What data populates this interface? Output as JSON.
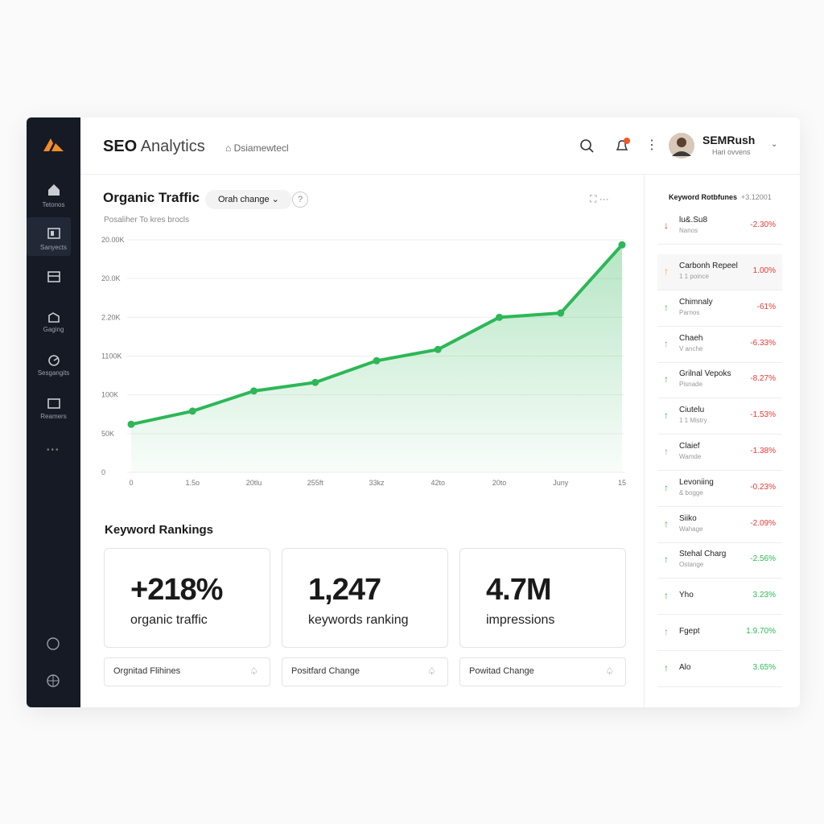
{
  "header": {
    "title_bold": "SEO",
    "title": "Analytics",
    "breadcrumb": "Dsiamewtecl",
    "user_name": "SEMRush",
    "user_role": "Hari ovvens"
  },
  "sidebar": [
    "Tetonos",
    "Sanyects",
    "Gaging",
    "Sesgangits",
    "Reamers"
  ],
  "chart_data": {
    "type": "line",
    "title": "Organic Traffic",
    "dropdown": "Orah change",
    "subtitle": "Posaliher To kres brocls",
    "categories": [
      "0",
      "1.5o",
      "20tlu",
      "255ft",
      "33kz",
      "42to",
      "20to",
      "Juny",
      "15"
    ],
    "values": [
      1.24,
      1.58,
      2.1,
      2.32,
      2.88,
      3.17,
      4.0,
      4.11,
      5.87
    ],
    "color": "#2db757",
    "ylim": [
      0,
      6
    ],
    "yticks": [
      {
        "value": 0,
        "label": "0"
      },
      {
        "value": 1,
        "label": "50K"
      },
      {
        "value": 2,
        "label": "100K"
      },
      {
        "value": 3,
        "label": "1100K"
      },
      {
        "value": 4,
        "label": "2.20K"
      },
      {
        "value": 5,
        "label": "20.0K"
      },
      {
        "value": 6,
        "label": "20.00K"
      }
    ],
    "grid": true
  },
  "rankings": {
    "title": "Keyword Rankings",
    "stats": [
      {
        "value": "+218%",
        "label": "organic traffic"
      },
      {
        "value": "1,247",
        "label": "keywords ranking"
      },
      {
        "value": "4.7M",
        "label": "impressions"
      }
    ],
    "filters": [
      "Orgnitad Flihines",
      "Positfard Change",
      "Powitad Change"
    ]
  },
  "keyword_panel": {
    "title": "Keyword Rotbfunes",
    "total": "+3.12001",
    "items": [
      {
        "name": "lu&.Su8",
        "detail": "Nanos",
        "change": "-2.30%",
        "trend": "down",
        "arrow_color": "#e53935",
        "change_color": "#e53935"
      },
      {
        "name": "Carbonh Repeel",
        "detail": "1 1 poince",
        "change": "1.00%",
        "trend": "up",
        "arrow_color": "#f5a623",
        "change_color": "#e53935"
      },
      {
        "name": "Chimnaly",
        "detail": "Parnos",
        "change": "-61%",
        "trend": "up",
        "arrow_color": "#2db757",
        "change_color": "#e53935"
      },
      {
        "name": "Chaeh",
        "detail": "V anche",
        "change": "-6.33%",
        "trend": "up",
        "arrow_color": "#9e9e9e",
        "change_color": "#e53935"
      },
      {
        "name": "Grilnal Vepoks",
        "detail": "Pisnade",
        "change": "-8.27%",
        "trend": "up",
        "arrow_color": "#2db757",
        "change_color": "#e53935"
      },
      {
        "name": "Ciutelu",
        "detail": "1 1 Mistry",
        "change": "-1.53%",
        "trend": "up",
        "arrow_color": "#2db757",
        "change_color": "#e53935"
      },
      {
        "name": "Claief",
        "detail": "Wamde",
        "change": "-1.38%",
        "trend": "up",
        "arrow_color": "#9e9e9e",
        "change_color": "#e53935"
      },
      {
        "name": "Levoniing",
        "detail": "& bogge",
        "change": "-0.23%",
        "trend": "up",
        "arrow_color": "#2db757",
        "change_color": "#e53935"
      },
      {
        "name": "Siiko",
        "detail": "Wahage",
        "change": "-2.09%",
        "trend": "up",
        "arrow_color": "#2db757",
        "change_color": "#e53935"
      },
      {
        "name": "Stehal Charg",
        "detail": "Ostange",
        "change": "-2.56%",
        "trend": "up",
        "arrow_color": "#2db757",
        "change_color": "#2db757"
      },
      {
        "name": "Yho",
        "detail": null,
        "change": "3.23%",
        "trend": "up",
        "arrow_color": "#2db757",
        "change_color": "#2db757"
      },
      {
        "name": "Fgept",
        "detail": null,
        "change": "1.9.70%",
        "trend": "up",
        "arrow_color": "#9e9e9e",
        "change_color": "#2db757"
      },
      {
        "name": "Alo",
        "detail": null,
        "change": "3.65%",
        "trend": "up",
        "arrow_color": "#2db757",
        "change_color": "#2db757"
      }
    ]
  }
}
